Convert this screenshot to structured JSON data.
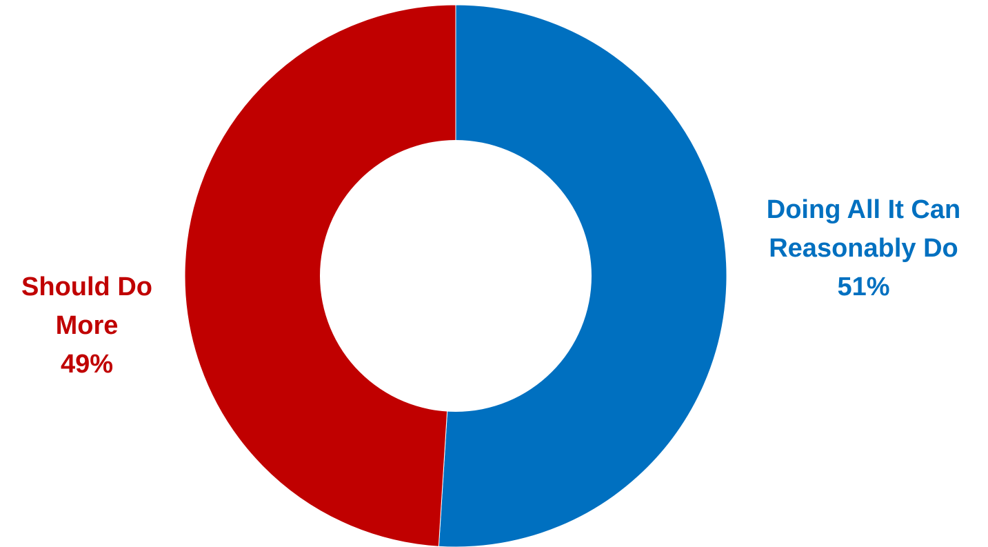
{
  "chart_data": {
    "type": "pie",
    "variant": "donut",
    "title": "",
    "slices": [
      {
        "label_lines": [
          "Doing All It Can",
          "Reasonably Do"
        ],
        "value": 51,
        "value_label": "51%",
        "color": "#0070C0"
      },
      {
        "label_lines": [
          "Should Do",
          "More"
        ],
        "value": 49,
        "value_label": "49%",
        "color": "#C00000"
      }
    ],
    "start_angle_deg": 0,
    "direction": "clockwise",
    "legend": "none"
  }
}
